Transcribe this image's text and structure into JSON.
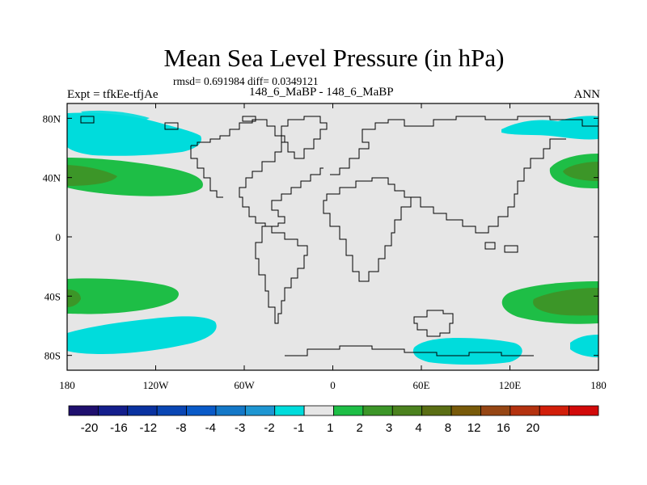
{
  "title": "Mean Sea Level Pressure (in hPa)",
  "stats_line": "rmsd= 0.691984 diff= 0.0349121",
  "left_label": "Expt = tfkEe-tfjAe",
  "center_label": "148_6_MaBP - 148_6_MaBP",
  "right_label": "ANN",
  "map": {
    "projection": "cylindrical equidistant",
    "lon_range": [
      -180,
      180
    ],
    "lat_range": [
      -90,
      90
    ],
    "x_tick_labels": [
      "180",
      "120W",
      "60W",
      "0",
      "60E",
      "120E",
      "180"
    ],
    "y_tick_labels": [
      "80N",
      "40N",
      "0",
      "40S",
      "80S"
    ],
    "background_color": "#e6e6e6",
    "coastline_color": "#000000"
  },
  "colorbar": {
    "colors": [
      "#1f0f6e",
      "#141e8c",
      "#0a32a0",
      "#0a46b4",
      "#0a5ac8",
      "#1478c8",
      "#1e96d2",
      "#00dcdc",
      "#e6e6e6",
      "#1ebe46",
      "#3c9628",
      "#4b821e",
      "#5a6e14",
      "#785a0a",
      "#964614",
      "#b4320f",
      "#d21e0a",
      "#d20a0a"
    ],
    "labels": [
      "-20",
      "-16",
      "-12",
      "-8",
      "-4",
      "-3",
      "-2",
      "-1",
      "1",
      "2",
      "3",
      "4",
      "8",
      "12",
      "16",
      "20"
    ]
  },
  "field_anomalies": [
    {
      "name": "north-polar-low",
      "level": "-1 to -2",
      "color": "#00dcdc",
      "region": "high northern latitudes, Pacific and Siberian Arctic"
    },
    {
      "name": "north-pacific-high",
      "level": "1 to 3",
      "color": "#1ebe46",
      "region": "North Pacific around 40N"
    },
    {
      "name": "south-pacific-high",
      "level": "1 to 3",
      "color": "#1ebe46",
      "region": "South Pacific around 40S"
    },
    {
      "name": "southern-ocean-low",
      "level": "-1 to -2",
      "color": "#00dcdc",
      "region": "Southern Ocean around 60-80S"
    }
  ]
}
